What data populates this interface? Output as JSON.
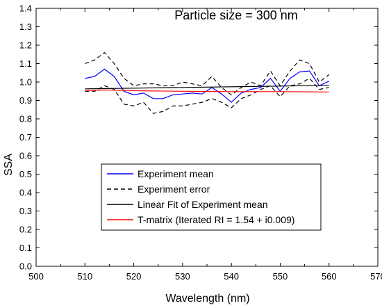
{
  "chart_data": {
    "type": "line",
    "title": "Particle size = 300 nm",
    "xlabel": "Wavelength (nm)",
    "ylabel": "SSA",
    "xlim": [
      500,
      570
    ],
    "ylim": [
      0.0,
      1.4
    ],
    "xticks": [
      "500",
      "510",
      "520",
      "530",
      "540",
      "550",
      "560",
      "570"
    ],
    "yticks": [
      "0.0",
      "0.1",
      "0.2",
      "0.3",
      "0.4",
      "0.5",
      "0.6",
      "0.7",
      "0.8",
      "0.9",
      "1.0",
      "1.1",
      "1.2",
      "1.3",
      "1.4"
    ],
    "grid": false,
    "legend_position": "lower-center",
    "series": [
      {
        "name": "Experiment mean",
        "color": "#0000ff",
        "style": "solid",
        "x": [
          510,
          512,
          514,
          516,
          518,
          520,
          522,
          524,
          526,
          528,
          530,
          532,
          534,
          536,
          538,
          540,
          542,
          544,
          546,
          548,
          550,
          552,
          554,
          556,
          558,
          560
        ],
        "y": [
          1.02,
          1.03,
          1.07,
          1.03,
          0.95,
          0.93,
          0.94,
          0.91,
          0.91,
          0.93,
          0.935,
          0.94,
          0.935,
          0.97,
          0.935,
          0.89,
          0.94,
          0.96,
          0.97,
          1.02,
          0.95,
          1.02,
          1.055,
          1.06,
          0.98,
          1.005
        ]
      },
      {
        "name": "Experiment error",
        "color": "#000000",
        "style": "dashed",
        "x": [
          510,
          512,
          514,
          516,
          518,
          520,
          522,
          524,
          526,
          528,
          530,
          532,
          534,
          536,
          538,
          540,
          542,
          544,
          546,
          548,
          550,
          552,
          554,
          556,
          558,
          560
        ],
        "y": [
          1.1,
          1.12,
          1.16,
          1.1,
          1.02,
          0.98,
          0.99,
          0.99,
          0.98,
          0.98,
          1.0,
          0.99,
          0.98,
          1.03,
          0.97,
          0.93,
          0.97,
          1.0,
          0.98,
          1.06,
          0.98,
          1.06,
          1.12,
          1.1,
          1.0,
          1.04
        ]
      },
      {
        "name": "",
        "color": "#000000",
        "style": "dashed",
        "x": [
          510,
          512,
          514,
          516,
          518,
          520,
          522,
          524,
          526,
          528,
          530,
          532,
          534,
          536,
          538,
          540,
          542,
          544,
          546,
          548,
          550,
          552,
          554,
          556,
          558,
          560
        ],
        "y": [
          0.95,
          0.95,
          0.98,
          0.96,
          0.88,
          0.87,
          0.89,
          0.83,
          0.84,
          0.87,
          0.87,
          0.88,
          0.89,
          0.91,
          0.89,
          0.86,
          0.91,
          0.93,
          0.96,
          0.98,
          0.92,
          0.98,
          0.99,
          1.02,
          0.96,
          0.97
        ]
      },
      {
        "name": "Linear Fit of Experiment mean",
        "color": "#000000",
        "style": "solid",
        "x": [
          510,
          560
        ],
        "y": [
          0.963,
          0.982
        ]
      },
      {
        "name": "T-matrix (Iterated RI = 1.54 + i0.009)",
        "color": "#ff0000",
        "style": "solid",
        "x": [
          510,
          514,
          520,
          530,
          540,
          550,
          560
        ],
        "y": [
          0.953,
          0.957,
          0.953,
          0.95,
          0.948,
          0.948,
          0.946
        ]
      }
    ],
    "legend": [
      {
        "label": "Experiment mean",
        "color": "#0000ff",
        "style": "solid"
      },
      {
        "label": "Experiment error",
        "color": "#000000",
        "style": "dashed"
      },
      {
        "label": "Linear Fit of Experiment mean",
        "color": "#000000",
        "style": "solid"
      },
      {
        "label": "T-matrix (Iterated RI = 1.54 + i0.009)",
        "color": "#ff0000",
        "style": "solid"
      }
    ]
  }
}
